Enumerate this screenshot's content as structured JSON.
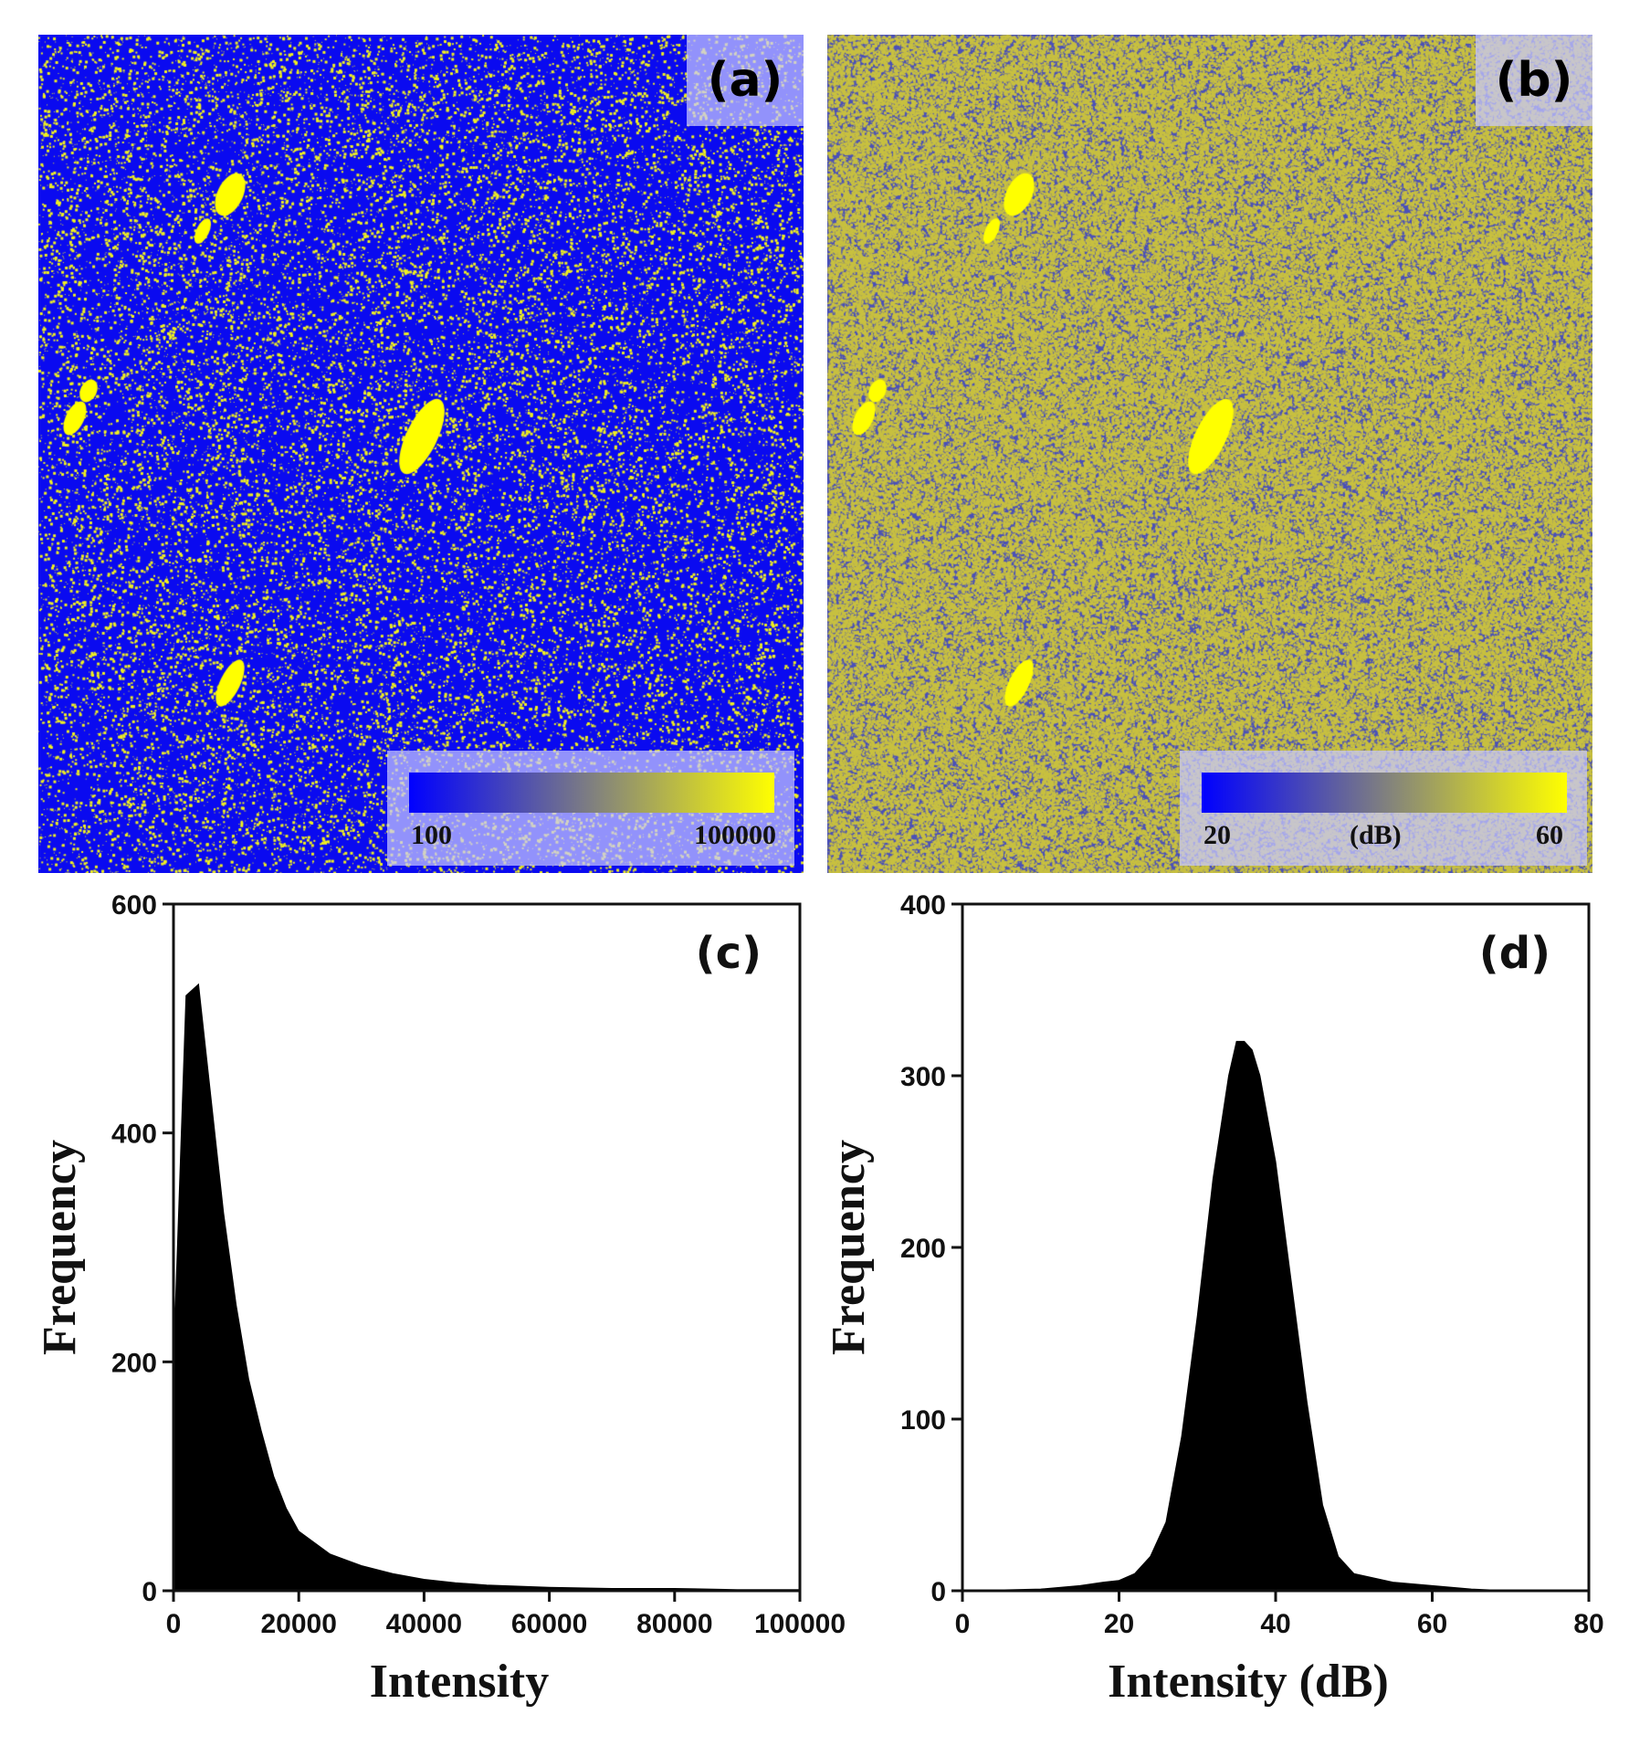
{
  "panels": {
    "a": {
      "label": "(a)",
      "colorbar": {
        "min_label": "100",
        "max_label": "100000",
        "unit_label": "",
        "low_color": "#0000ff",
        "high_color": "#ffff00"
      },
      "background_color": "#0a0af0",
      "speckle_color": "#f0f020"
    },
    "b": {
      "label": "(b)",
      "colorbar": {
        "min_label": "20",
        "max_label": "60",
        "unit_label": "(dB)",
        "low_color": "#0000ff",
        "high_color": "#ffff00"
      },
      "background_color": "#4a50b8",
      "speckle_color": "#c8c040"
    }
  },
  "chart_data": [
    {
      "type": "bar",
      "label": "(c)",
      "title": "",
      "xlabel": "Intensity",
      "ylabel": "Frequency",
      "xlim": [
        0,
        100000
      ],
      "ylim": [
        0,
        600
      ],
      "x_ticks": [
        "0",
        "20000",
        "40000",
        "60000",
        "80000",
        "100000"
      ],
      "y_ticks": [
        "0",
        "200",
        "400",
        "600"
      ],
      "bar_color": "#000000",
      "series": [
        {
          "x": [
            0,
            2000,
            4000,
            6000,
            8000,
            10000,
            12000,
            14000,
            16000,
            18000,
            20000,
            25000,
            30000,
            35000,
            40000,
            45000,
            50000,
            60000,
            70000,
            80000,
            90000,
            100000
          ],
          "values": [
            200,
            520,
            530,
            430,
            330,
            250,
            185,
            140,
            100,
            72,
            52,
            32,
            22,
            15,
            10,
            7,
            5,
            3,
            2,
            2,
            1,
            1
          ]
        }
      ]
    },
    {
      "type": "bar",
      "label": "(d)",
      "title": "",
      "xlabel": "Intensity (dB)",
      "ylabel": "Frequency",
      "xlim": [
        0,
        80
      ],
      "ylim": [
        0,
        400
      ],
      "x_ticks": [
        "0",
        "20",
        "40",
        "60",
        "80"
      ],
      "y_ticks": [
        "0",
        "100",
        "200",
        "300",
        "400"
      ],
      "bar_color": "#000000",
      "series": [
        {
          "x": [
            0,
            10,
            15,
            18,
            20,
            22,
            24,
            26,
            28,
            30,
            32,
            34,
            35,
            36,
            37,
            38,
            40,
            42,
            44,
            46,
            48,
            50,
            55,
            60,
            65,
            70,
            80
          ],
          "values": [
            0,
            1,
            3,
            5,
            6,
            10,
            20,
            40,
            90,
            160,
            240,
            300,
            320,
            320,
            315,
            300,
            250,
            180,
            110,
            50,
            20,
            10,
            5,
            3,
            1,
            0,
            0
          ]
        }
      ]
    }
  ]
}
